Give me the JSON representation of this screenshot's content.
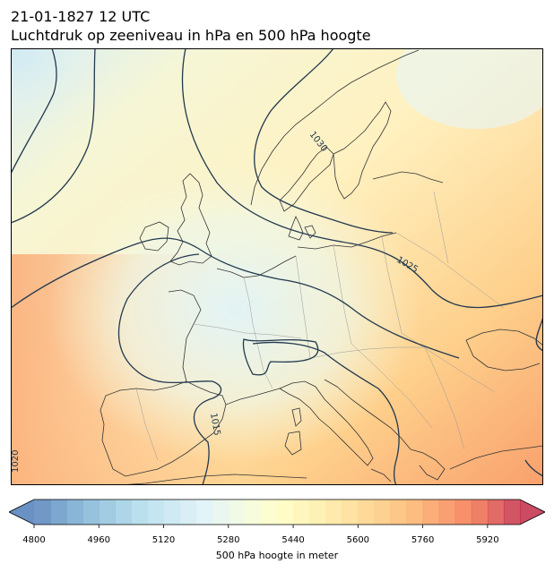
{
  "header": {
    "date_line": "21-01-1827 12 UTC",
    "title": "Luchtdruk op zeeniveau in hPa en 500 hPa hoogte"
  },
  "map": {
    "region": "Europe",
    "projection": "Lambert conformal",
    "contour_labels": [
      {
        "value": "1030"
      },
      {
        "value": "1025"
      },
      {
        "value": "1015"
      },
      {
        "value": "1020"
      }
    ],
    "isobar_color": "#23394f",
    "coastline_color": "#333333",
    "border_color": "#9a9a9a"
  },
  "colorbar": {
    "label": "500 hPa hoogte in meter",
    "min": 4800,
    "max": 6000,
    "step": 40,
    "ticks": [
      "4800",
      "4960",
      "5120",
      "5280",
      "5440",
      "5600",
      "5760",
      "5920"
    ],
    "colormap": "RdYlBu_r",
    "extend": "both"
  }
}
